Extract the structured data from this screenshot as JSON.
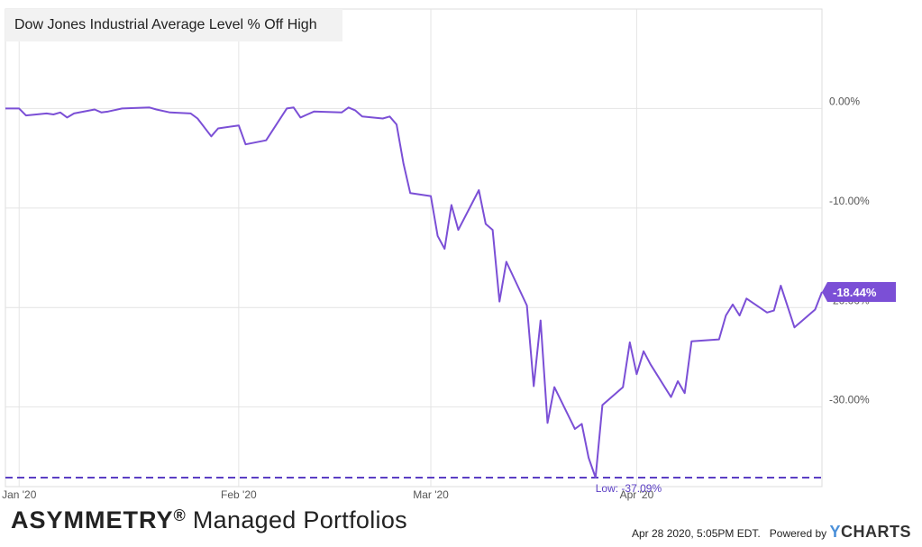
{
  "chart_data": {
    "type": "line",
    "title": "Dow Jones Industrial Average Level % Off High",
    "x_ticks": [
      {
        "label": "Jan '20",
        "date": "2020-01-02"
      },
      {
        "label": "Feb '20",
        "date": "2020-02-03"
      },
      {
        "label": "Mar '20",
        "date": "2020-03-02"
      },
      {
        "label": "Apr '20",
        "date": "2020-04-01"
      }
    ],
    "y_ticks": [
      {
        "label": "0.00%",
        "value": 0
      },
      {
        "label": "-10.00%",
        "value": -10
      },
      {
        "label": "-20.00%",
        "value": -20
      },
      {
        "label": "-30.00%",
        "value": -30
      }
    ],
    "xlim": [
      "2019-12-31",
      "2020-04-28"
    ],
    "ylim": [
      -38,
      10
    ],
    "grid": true,
    "line_color": "#7b4fd6",
    "series": [
      {
        "points": [
          [
            "2019-12-31",
            0.0
          ],
          [
            "2020-01-02",
            0.0
          ],
          [
            "2020-01-03",
            -0.7
          ],
          [
            "2020-01-06",
            -0.5
          ],
          [
            "2020-01-07",
            -0.6
          ],
          [
            "2020-01-08",
            -0.4
          ],
          [
            "2020-01-09",
            -0.9
          ],
          [
            "2020-01-10",
            -0.5
          ],
          [
            "2020-01-13",
            -0.1
          ],
          [
            "2020-01-14",
            -0.4
          ],
          [
            "2020-01-15",
            -0.3
          ],
          [
            "2020-01-17",
            0.0
          ],
          [
            "2020-01-21",
            0.1
          ],
          [
            "2020-01-22",
            -0.1
          ],
          [
            "2020-01-24",
            -0.4
          ],
          [
            "2020-01-27",
            -0.5
          ],
          [
            "2020-01-28",
            -1.0
          ],
          [
            "2020-01-30",
            -2.8
          ],
          [
            "2020-01-31",
            -2.0
          ],
          [
            "2020-02-03",
            -1.7
          ],
          [
            "2020-02-04",
            -3.6
          ],
          [
            "2020-02-07",
            -3.2
          ],
          [
            "2020-02-10",
            0.0
          ],
          [
            "2020-02-11",
            0.1
          ],
          [
            "2020-02-12",
            -0.9
          ],
          [
            "2020-02-13",
            -0.6
          ],
          [
            "2020-02-14",
            -0.3
          ],
          [
            "2020-02-18",
            -0.4
          ],
          [
            "2020-02-19",
            0.1
          ],
          [
            "2020-02-20",
            -0.2
          ],
          [
            "2020-02-21",
            -0.8
          ],
          [
            "2020-02-24",
            -1.0
          ],
          [
            "2020-02-25",
            -0.8
          ],
          [
            "2020-02-26",
            -1.6
          ],
          [
            "2020-02-27",
            -5.5
          ],
          [
            "2020-02-28",
            -8.5
          ],
          [
            "2020-03-02",
            -8.8
          ],
          [
            "2020-03-03",
            -12.8
          ],
          [
            "2020-03-04",
            -14.1
          ],
          [
            "2020-03-05",
            -9.7
          ],
          [
            "2020-03-06",
            -12.2
          ],
          [
            "2020-03-09",
            -8.2
          ],
          [
            "2020-03-10",
            -11.6
          ],
          [
            "2020-03-11",
            -12.2
          ],
          [
            "2020-03-12",
            -19.4
          ],
          [
            "2020-03-13",
            -15.4
          ],
          [
            "2020-03-16",
            -19.8
          ],
          [
            "2020-03-17",
            -27.9
          ],
          [
            "2020-03-18",
            -21.3
          ],
          [
            "2020-03-19",
            -31.6
          ],
          [
            "2020-03-20",
            -28.0
          ],
          [
            "2020-03-23",
            -32.2
          ],
          [
            "2020-03-24",
            -31.7
          ],
          [
            "2020-03-25",
            -35.1
          ],
          [
            "2020-03-26",
            -37.09
          ],
          [
            "2020-03-27",
            -29.8
          ],
          [
            "2020-03-30",
            -28.0
          ],
          [
            "2020-03-31",
            -23.5
          ],
          [
            "2020-04-01",
            -26.7
          ],
          [
            "2020-04-02",
            -24.4
          ],
          [
            "2020-04-03",
            -25.7
          ],
          [
            "2020-04-06",
            -29.0
          ],
          [
            "2020-04-07",
            -27.4
          ],
          [
            "2020-04-08",
            -28.6
          ],
          [
            "2020-04-09",
            -23.4
          ],
          [
            "2020-04-13",
            -23.2
          ],
          [
            "2020-04-14",
            -20.8
          ],
          [
            "2020-04-15",
            -19.7
          ],
          [
            "2020-04-16",
            -20.8
          ],
          [
            "2020-04-17",
            -19.1
          ],
          [
            "2020-04-20",
            -20.5
          ],
          [
            "2020-04-21",
            -20.3
          ],
          [
            "2020-04-22",
            -17.8
          ],
          [
            "2020-04-23",
            -19.9
          ],
          [
            "2020-04-24",
            -22.0
          ],
          [
            "2020-04-27",
            -20.2
          ],
          [
            "2020-04-28",
            -18.44
          ]
        ]
      }
    ],
    "low_line": {
      "value": -37.09,
      "label": "Low: -37.09%"
    },
    "last_value_label": "-18.44%"
  },
  "footer": {
    "brand_bold": "ASYMMETRY",
    "brand_reg": "®",
    "brand_rest": " Managed Portfolios",
    "timestamp": "Apr 28 2020, 5:05PM EDT.",
    "powered_by": "Powered by",
    "logo_y": "Y",
    "logo_rest": "CHARTS"
  }
}
